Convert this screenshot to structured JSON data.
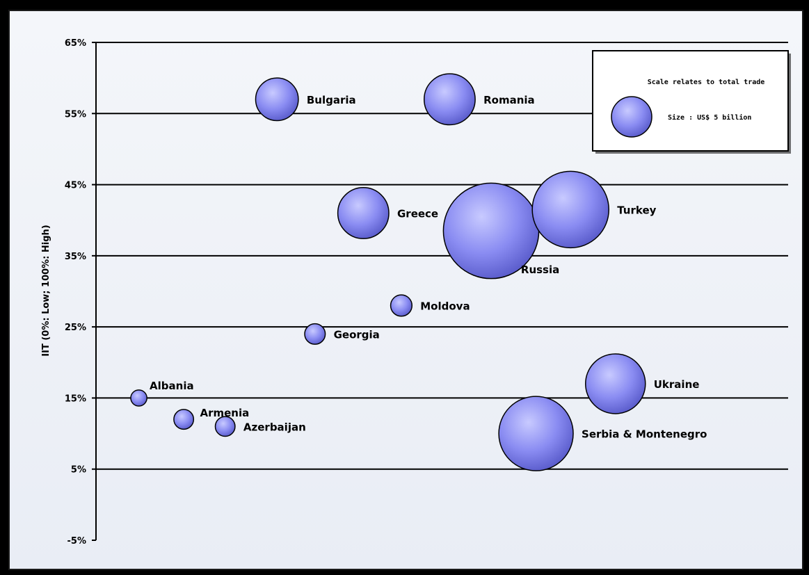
{
  "chart_data": {
    "type": "bubble",
    "ylabel": "IIT (0%: Low; 100%: High)",
    "ylim": [
      -5,
      65
    ],
    "y_ticks": [
      -5,
      5,
      15,
      25,
      35,
      45,
      55,
      65
    ],
    "y_tick_labels": [
      "-5%",
      "5%",
      "15%",
      "25%",
      "35%",
      "45%",
      "55%",
      "65%"
    ],
    "x_range": [
      0,
      100
    ],
    "grid": "horizontal",
    "bubble_color": "#8a8cf2",
    "points": [
      {
        "label": "Bulgaria",
        "x": 26,
        "y": 57,
        "size": 5.6
      },
      {
        "label": "Romania",
        "x": 51,
        "y": 57,
        "size": 8.0
      },
      {
        "label": "Greece",
        "x": 38.5,
        "y": 41,
        "size": 8.0
      },
      {
        "label": "Turkey",
        "x": 68.5,
        "y": 41.5,
        "size": 18.0
      },
      {
        "label": "Russia",
        "x": 57,
        "y": 38.5,
        "size": 28.0
      },
      {
        "label": "Moldova",
        "x": 44,
        "y": 28,
        "size": 1.4
      },
      {
        "label": "Georgia",
        "x": 31.5,
        "y": 24,
        "size": 1.3
      },
      {
        "label": "Ukraine",
        "x": 75,
        "y": 17,
        "size": 11.0
      },
      {
        "label": "Albania",
        "x": 6,
        "y": 15,
        "size": 0.8
      },
      {
        "label": "Armenia",
        "x": 12.5,
        "y": 12,
        "size": 1.2
      },
      {
        "label": "Azerbaijan",
        "x": 18.5,
        "y": 11,
        "size": 1.2
      },
      {
        "label": "Serbia & Montenegro",
        "x": 63.5,
        "y": 10,
        "size": 17.0
      }
    ],
    "legend": {
      "placement": "top-right",
      "title": "Scale relates to total trade",
      "size_label": "Size : US$ 5 billion",
      "size_value": 5
    }
  }
}
